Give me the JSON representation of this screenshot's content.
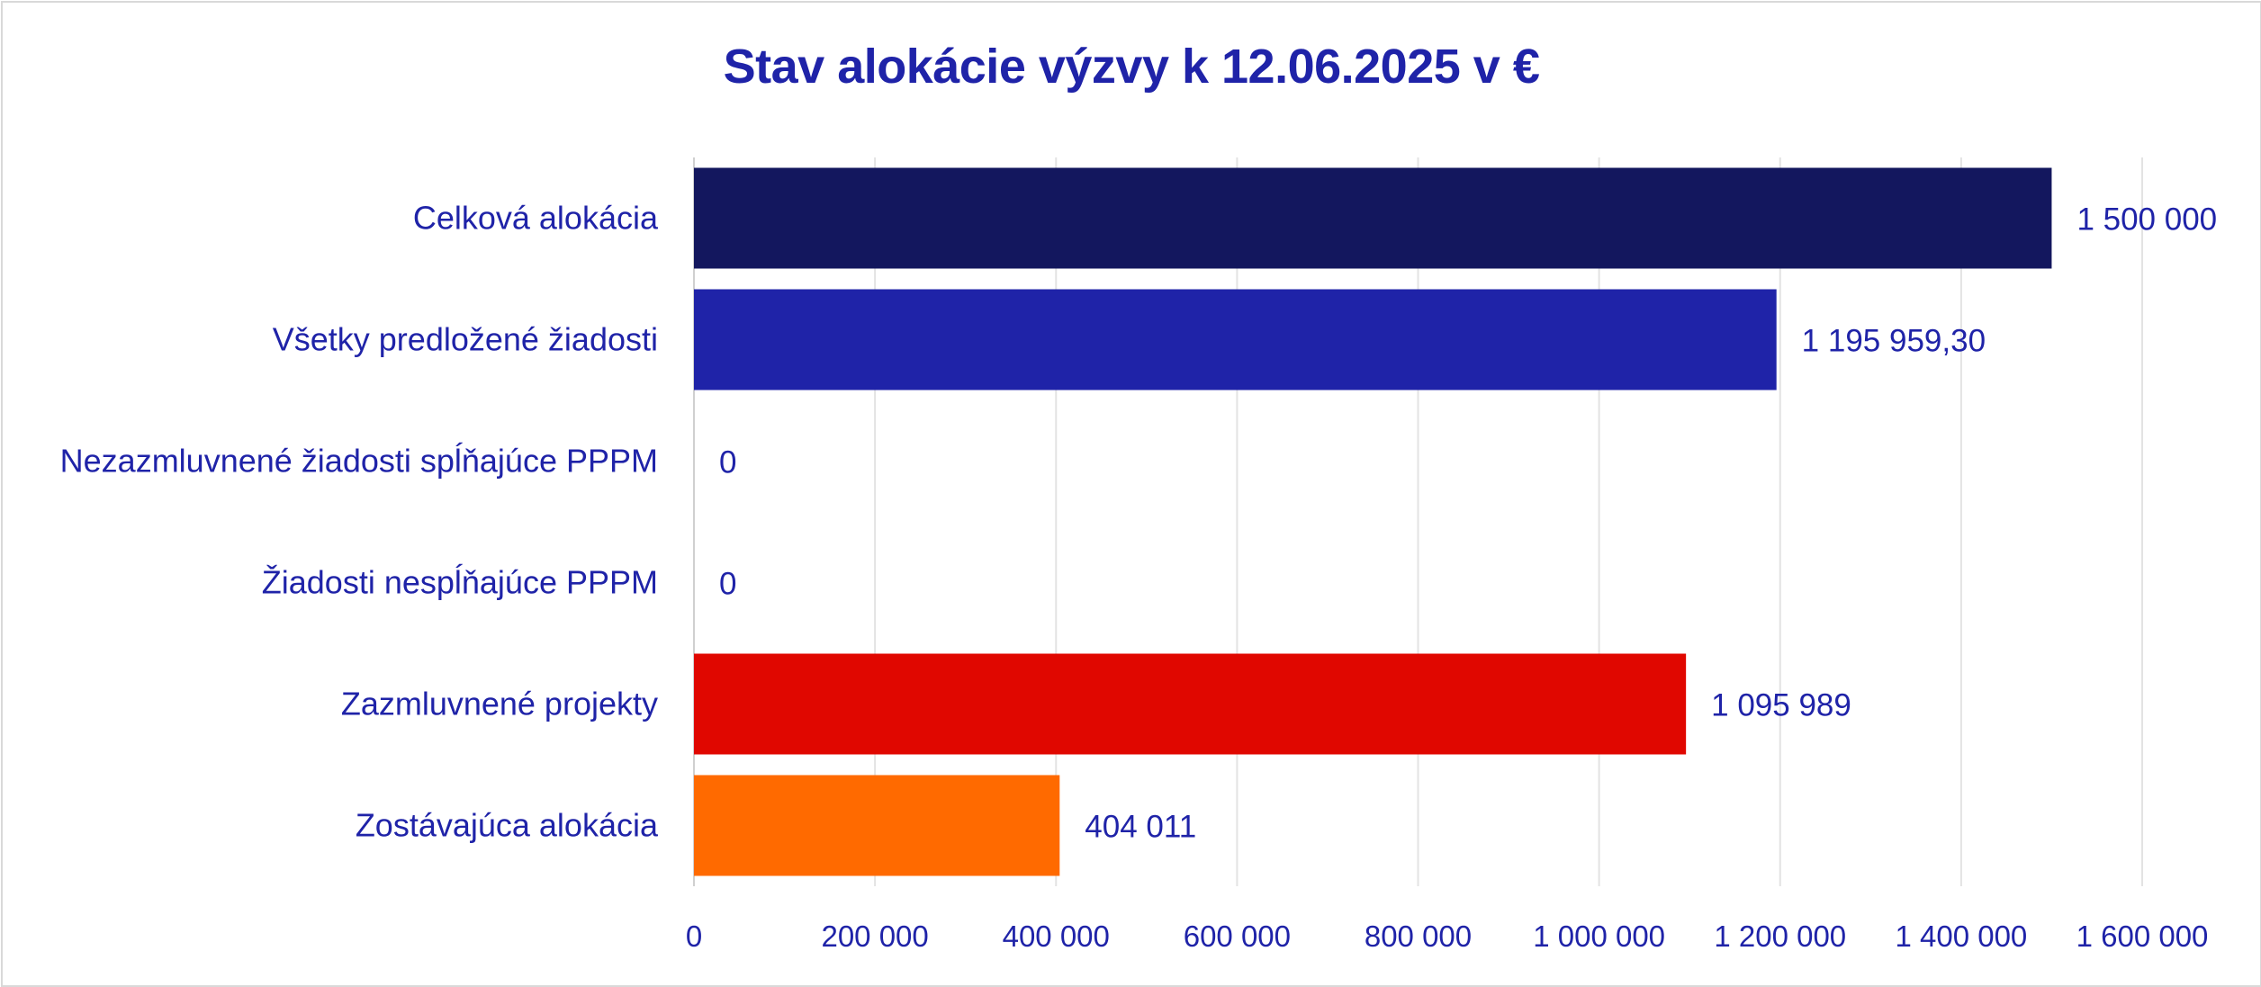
{
  "chart_data": {
    "type": "bar",
    "orientation": "horizontal",
    "title": "Stav alokácie výzvy k 12.06.2025 v €",
    "categories": [
      "Celková alokácia",
      "Všetky predložené žiadosti",
      "Nezazmluvnené žiadosti spĺňajúce PPPM",
      "Žiadosti nespĺňajúce PPPM",
      "Zazmluvnené projekty",
      "Zostávajúca alokácia"
    ],
    "values": [
      1500000,
      1195959.3,
      0,
      0,
      1095989,
      404011
    ],
    "data_labels": [
      "1 500 000",
      "1 195 959,30",
      "0",
      "0",
      "1 095 989",
      "404 011"
    ],
    "colors": [
      "#13175e",
      "#1f23a8",
      "#1f23a8",
      "#1f23a8",
      "#e00700",
      "#ff6a00"
    ],
    "xlim": [
      0,
      1600000
    ],
    "x_ticks": [
      0,
      200000,
      400000,
      600000,
      800000,
      1000000,
      1200000,
      1400000,
      1600000
    ],
    "x_tick_labels": [
      "0",
      "200 000",
      "400 000",
      "600 000",
      "800 000",
      "1 000 000",
      "1 200 000",
      "1 400 000",
      "1 600 000"
    ],
    "xlabel": "",
    "ylabel": "",
    "grid": "vertical",
    "legend": "none"
  }
}
